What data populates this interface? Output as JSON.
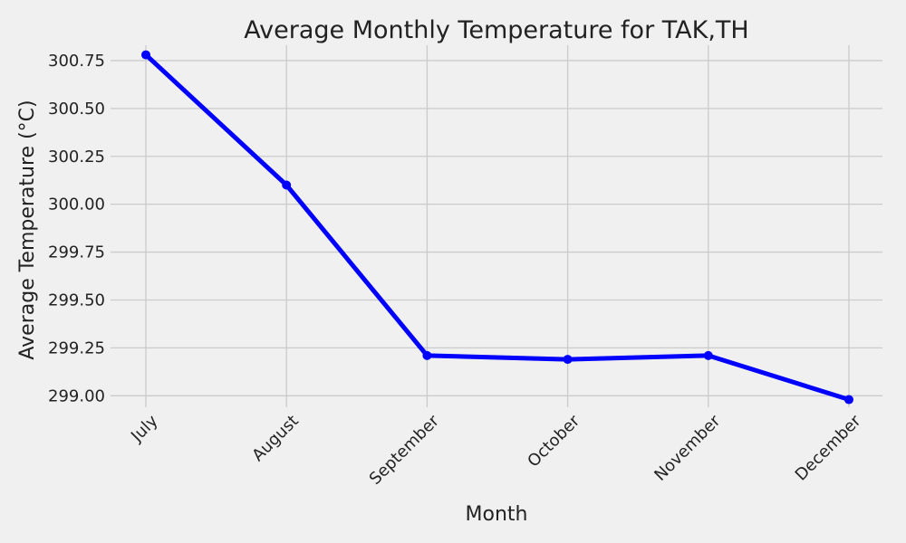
{
  "chart_data": {
    "type": "line",
    "title": "Average Monthly Temperature for TAK,TH",
    "xlabel": "Month",
    "ylabel": "Average Temperature (°C)",
    "categories": [
      "July",
      "August",
      "September",
      "October",
      "November",
      "December"
    ],
    "series": [
      {
        "values": [
          300.78,
          300.1,
          299.21,
          299.19,
          299.21,
          298.98
        ],
        "color": "#0000ff",
        "marker": "circle"
      }
    ],
    "ylim": [
      298.94,
      300.83
    ],
    "yticks": [
      299.0,
      299.25,
      299.5,
      299.75,
      300.0,
      300.25,
      300.5,
      300.75
    ],
    "ytick_labels": [
      "299.00",
      "299.25",
      "299.50",
      "299.75",
      "300.00",
      "300.25",
      "300.50",
      "300.75"
    ],
    "grid": true,
    "background_color": "#f0f0f0"
  }
}
